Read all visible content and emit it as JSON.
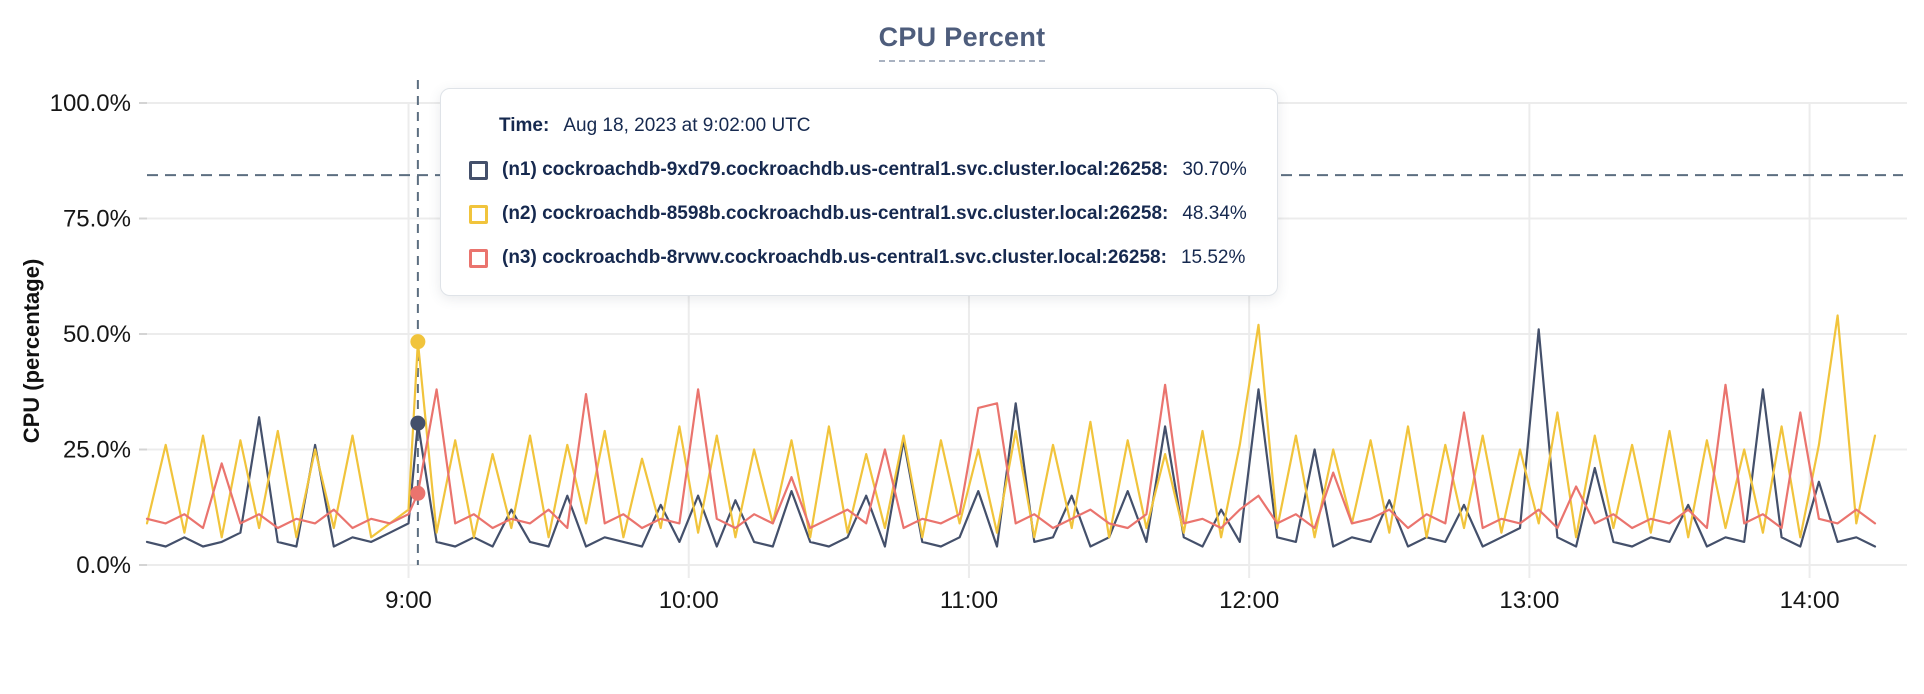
{
  "tooltip": {
    "time_label": "Time:",
    "time_value": "Aug 18, 2023 at 9:02:00 UTC",
    "rows": [
      {
        "label": "(n1) cockroachdb-9xd79.cockroachdb.us-central1.svc.cluster.local:26258:",
        "value": "30.70%"
      },
      {
        "label": "(n2) cockroachdb-8598b.cockroachdb.us-central1.svc.cluster.local:26258:",
        "value": "48.34%"
      },
      {
        "label": "(n3) cockroachdb-8rvwv.cockroachdb.us-central1.svc.cluster.local:26258:",
        "value": "15.52%"
      }
    ]
  },
  "chart_data": {
    "type": "line",
    "title": "CPU Percent",
    "xlabel": "",
    "ylabel": "CPU (percentage)",
    "ylim": [
      0,
      100
    ],
    "grid": true,
    "legend_position": "tooltip",
    "colors": {
      "grid": "#ececec",
      "tick": "#d4d4d4",
      "axis_text": "#161616",
      "crosshair": "#5c6e80",
      "title_accent": "#4e5d7c"
    },
    "yticks": [
      {
        "value": 0,
        "label": "0.0%"
      },
      {
        "value": 25,
        "label": "25.0%"
      },
      {
        "value": 50,
        "label": "50.0%"
      },
      {
        "value": 75,
        "label": "75.0%"
      },
      {
        "value": 100,
        "label": "100.0%"
      }
    ],
    "xticks": [
      {
        "minute": 60,
        "label": "9:00"
      },
      {
        "minute": 120,
        "label": "10:00"
      },
      {
        "minute": 180,
        "label": "11:00"
      },
      {
        "minute": 240,
        "label": "12:00"
      },
      {
        "minute": 300,
        "label": "13:00"
      },
      {
        "minute": 360,
        "label": "14:00"
      }
    ],
    "x_unit": "minutes after 08:00",
    "x_range": [
      4,
      380
    ],
    "x_minutes": [
      4,
      8,
      12,
      16,
      20,
      24,
      28,
      32,
      36,
      40,
      44,
      48,
      52,
      56,
      60,
      62,
      66,
      70,
      74,
      78,
      82,
      86,
      90,
      94,
      98,
      102,
      106,
      110,
      114,
      118,
      122,
      126,
      130,
      134,
      138,
      142,
      146,
      150,
      154,
      158,
      162,
      166,
      170,
      174,
      178,
      182,
      186,
      190,
      194,
      198,
      202,
      206,
      210,
      214,
      218,
      222,
      226,
      230,
      234,
      238,
      242,
      246,
      250,
      254,
      258,
      262,
      266,
      270,
      274,
      278,
      282,
      286,
      290,
      294,
      298,
      302,
      306,
      310,
      314,
      318,
      322,
      326,
      330,
      334,
      338,
      342,
      346,
      350,
      354,
      358,
      362,
      366,
      370,
      374
    ],
    "series": [
      {
        "name": "(n1) cockroachdb-9xd79.cockroachdb.us-central1.svc.cluster.local:26258",
        "color": "#44506b",
        "values": [
          5,
          4,
          6,
          4,
          5,
          7,
          32,
          5,
          4,
          26,
          4,
          6,
          5,
          7,
          9,
          30.7,
          5,
          4,
          6,
          4,
          12,
          5,
          4,
          15,
          4,
          6,
          5,
          4,
          13,
          5,
          15,
          4,
          14,
          5,
          4,
          16,
          5,
          4,
          6,
          15,
          4,
          27,
          5,
          4,
          6,
          16,
          4,
          35,
          5,
          6,
          15,
          4,
          6,
          16,
          5,
          30,
          6,
          4,
          12,
          5,
          38,
          6,
          5,
          25,
          4,
          6,
          5,
          14,
          4,
          6,
          5,
          13,
          4,
          6,
          8,
          51,
          6,
          4,
          21,
          5,
          4,
          6,
          5,
          13,
          4,
          6,
          5,
          38,
          6,
          4,
          18,
          5,
          6,
          4
        ]
      },
      {
        "name": "(n2) cockroachdb-8598b.cockroachdb.us-central1.svc.cluster.local:26258",
        "color": "#f1c43c",
        "values": [
          9,
          26,
          7,
          28,
          6,
          27,
          8,
          29,
          6,
          25,
          8,
          28,
          6,
          9,
          12,
          48.34,
          7,
          27,
          6,
          24,
          8,
          28,
          6,
          26,
          9,
          29,
          6,
          23,
          8,
          30,
          7,
          28,
          6,
          25,
          9,
          27,
          6,
          30,
          7,
          24,
          8,
          28,
          6,
          27,
          9,
          25,
          7,
          29,
          6,
          26,
          8,
          31,
          6,
          27,
          8,
          24,
          7,
          29,
          6,
          26,
          52,
          8,
          28,
          6,
          25,
          9,
          27,
          7,
          30,
          6,
          26,
          8,
          28,
          7,
          25,
          9,
          33,
          6,
          28,
          8,
          26,
          7,
          29,
          6,
          27,
          8,
          25,
          7,
          30,
          6,
          26,
          54,
          9,
          28
        ]
      },
      {
        "name": "(n3) cockroachdb-8rvwv.cockroachdb.us-central1.svc.cluster.local:26258",
        "color": "#ea746e",
        "values": [
          10,
          9,
          11,
          8,
          22,
          9,
          11,
          8,
          10,
          9,
          12,
          8,
          10,
          9,
          11,
          15.52,
          38,
          9,
          11,
          8,
          10,
          9,
          12,
          8,
          37,
          9,
          11,
          8,
          10,
          9,
          38,
          10,
          8,
          11,
          9,
          19,
          8,
          10,
          12,
          9,
          25,
          8,
          10,
          9,
          11,
          34,
          35,
          9,
          11,
          8,
          10,
          12,
          9,
          8,
          11,
          39,
          9,
          10,
          8,
          12,
          15,
          9,
          11,
          8,
          20,
          9,
          10,
          12,
          8,
          11,
          9,
          33,
          8,
          10,
          9,
          12,
          8,
          17,
          9,
          11,
          8,
          10,
          9,
          12,
          8,
          39,
          9,
          11,
          8,
          33,
          10,
          9,
          12,
          9
        ]
      }
    ],
    "hover": {
      "minute": 62,
      "time_label": "Aug 18, 2023 at 9:02:00 UTC",
      "values": [
        30.7,
        48.34,
        15.52
      ],
      "crosshair_horizontal_percent": 84.4
    }
  }
}
